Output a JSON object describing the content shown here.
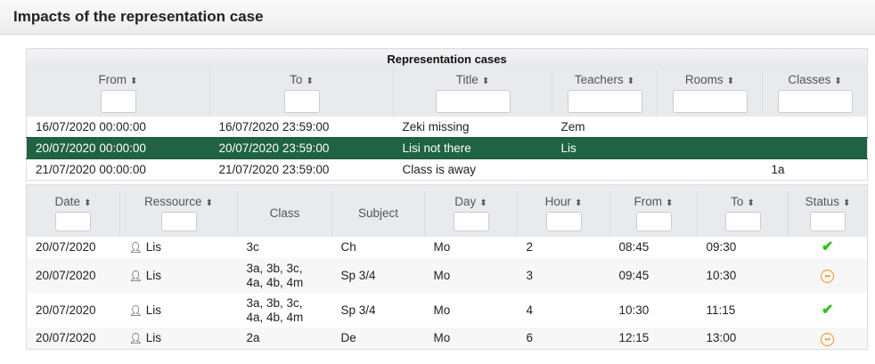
{
  "header": {
    "title": "Impacts of the representation case"
  },
  "cases": {
    "caption": "Representation cases",
    "columns": [
      "From",
      "To",
      "Title",
      "Teachers",
      "Rooms",
      "Classes"
    ],
    "rows": [
      {
        "from": "16/07/2020 00:00:00",
        "to": "16/07/2020 23:59:00",
        "title": "Zeki missing",
        "teachers": "Zem",
        "rooms": "",
        "classes": ""
      },
      {
        "from": "20/07/2020 00:00:00",
        "to": "20/07/2020 23:59:00",
        "title": "Lisi not there",
        "teachers": "Lis",
        "rooms": "",
        "classes": "",
        "selected": true
      },
      {
        "from": "21/07/2020 00:00:00",
        "to": "21/07/2020 23:59:00",
        "title": "Class is away",
        "teachers": "",
        "rooms": "",
        "classes": "1a"
      }
    ]
  },
  "impacts": {
    "columns": [
      "Date",
      "Ressource",
      "Class",
      "Subject",
      "Day",
      "Hour",
      "From",
      "To",
      "Status"
    ],
    "rows": [
      {
        "date": "20/07/2020",
        "resource": "Lis",
        "class1": "3c",
        "class2": "",
        "subject": "Ch",
        "day": "Mo",
        "hour": "2",
        "from": "08:45",
        "to": "09:30",
        "status": "ok"
      },
      {
        "date": "20/07/2020",
        "resource": "Lis",
        "class1": "3a, 3b, 3c,",
        "class2": "4a, 4b, 4m",
        "subject": "Sp 3/4",
        "day": "Mo",
        "hour": "3",
        "from": "09:45",
        "to": "10:30",
        "status": "warning"
      },
      {
        "date": "20/07/2020",
        "resource": "Lis",
        "class1": "3a, 3b, 3c,",
        "class2": "4a, 4b, 4m",
        "subject": "Sp 3/4",
        "day": "Mo",
        "hour": "4",
        "from": "10:30",
        "to": "11:15",
        "status": "ok"
      },
      {
        "date": "20/07/2020",
        "resource": "Lis",
        "class1": "2a",
        "class2": "",
        "subject": "De",
        "day": "Mo",
        "hour": "6",
        "from": "12:15",
        "to": "13:00",
        "status": "warning"
      }
    ]
  },
  "colors": {
    "selected_row": "#1f6342",
    "ok": "#2bc413",
    "warning": "#f29218"
  },
  "icons": {
    "sort": "sort-icon",
    "user": "user-icon",
    "ok": "check-icon",
    "warning": "neutral-face-icon"
  }
}
